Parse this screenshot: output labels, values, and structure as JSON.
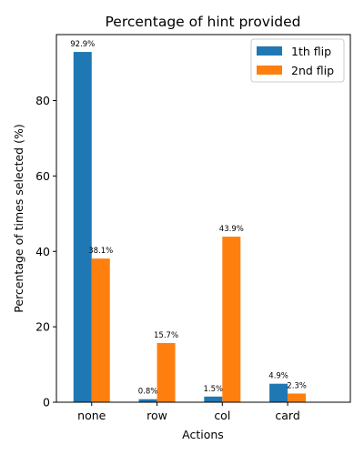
{
  "chart_data": {
    "type": "bar",
    "title": "Percentage of hint provided",
    "xlabel": "Actions",
    "ylabel": "Percentage of times selected (%)",
    "categories": [
      "none",
      "row",
      "col",
      "card"
    ],
    "series": [
      {
        "name": "1th flip",
        "color": "#1f77b4",
        "values": [
          92.9,
          0.8,
          1.5,
          4.9
        ],
        "labels": [
          "92.9%",
          "0.8%",
          "1.5%",
          "4.9%"
        ]
      },
      {
        "name": "2nd flip",
        "color": "#ff7f0e",
        "values": [
          38.1,
          15.7,
          43.9,
          2.3
        ],
        "labels": [
          "38.1%",
          "15.7%",
          "43.9%",
          "2.3%"
        ]
      }
    ],
    "ylim": [
      0,
      97.5
    ],
    "yticks": [
      0,
      20,
      40,
      60,
      80
    ],
    "grid": false,
    "legend_position": "top-right"
  }
}
